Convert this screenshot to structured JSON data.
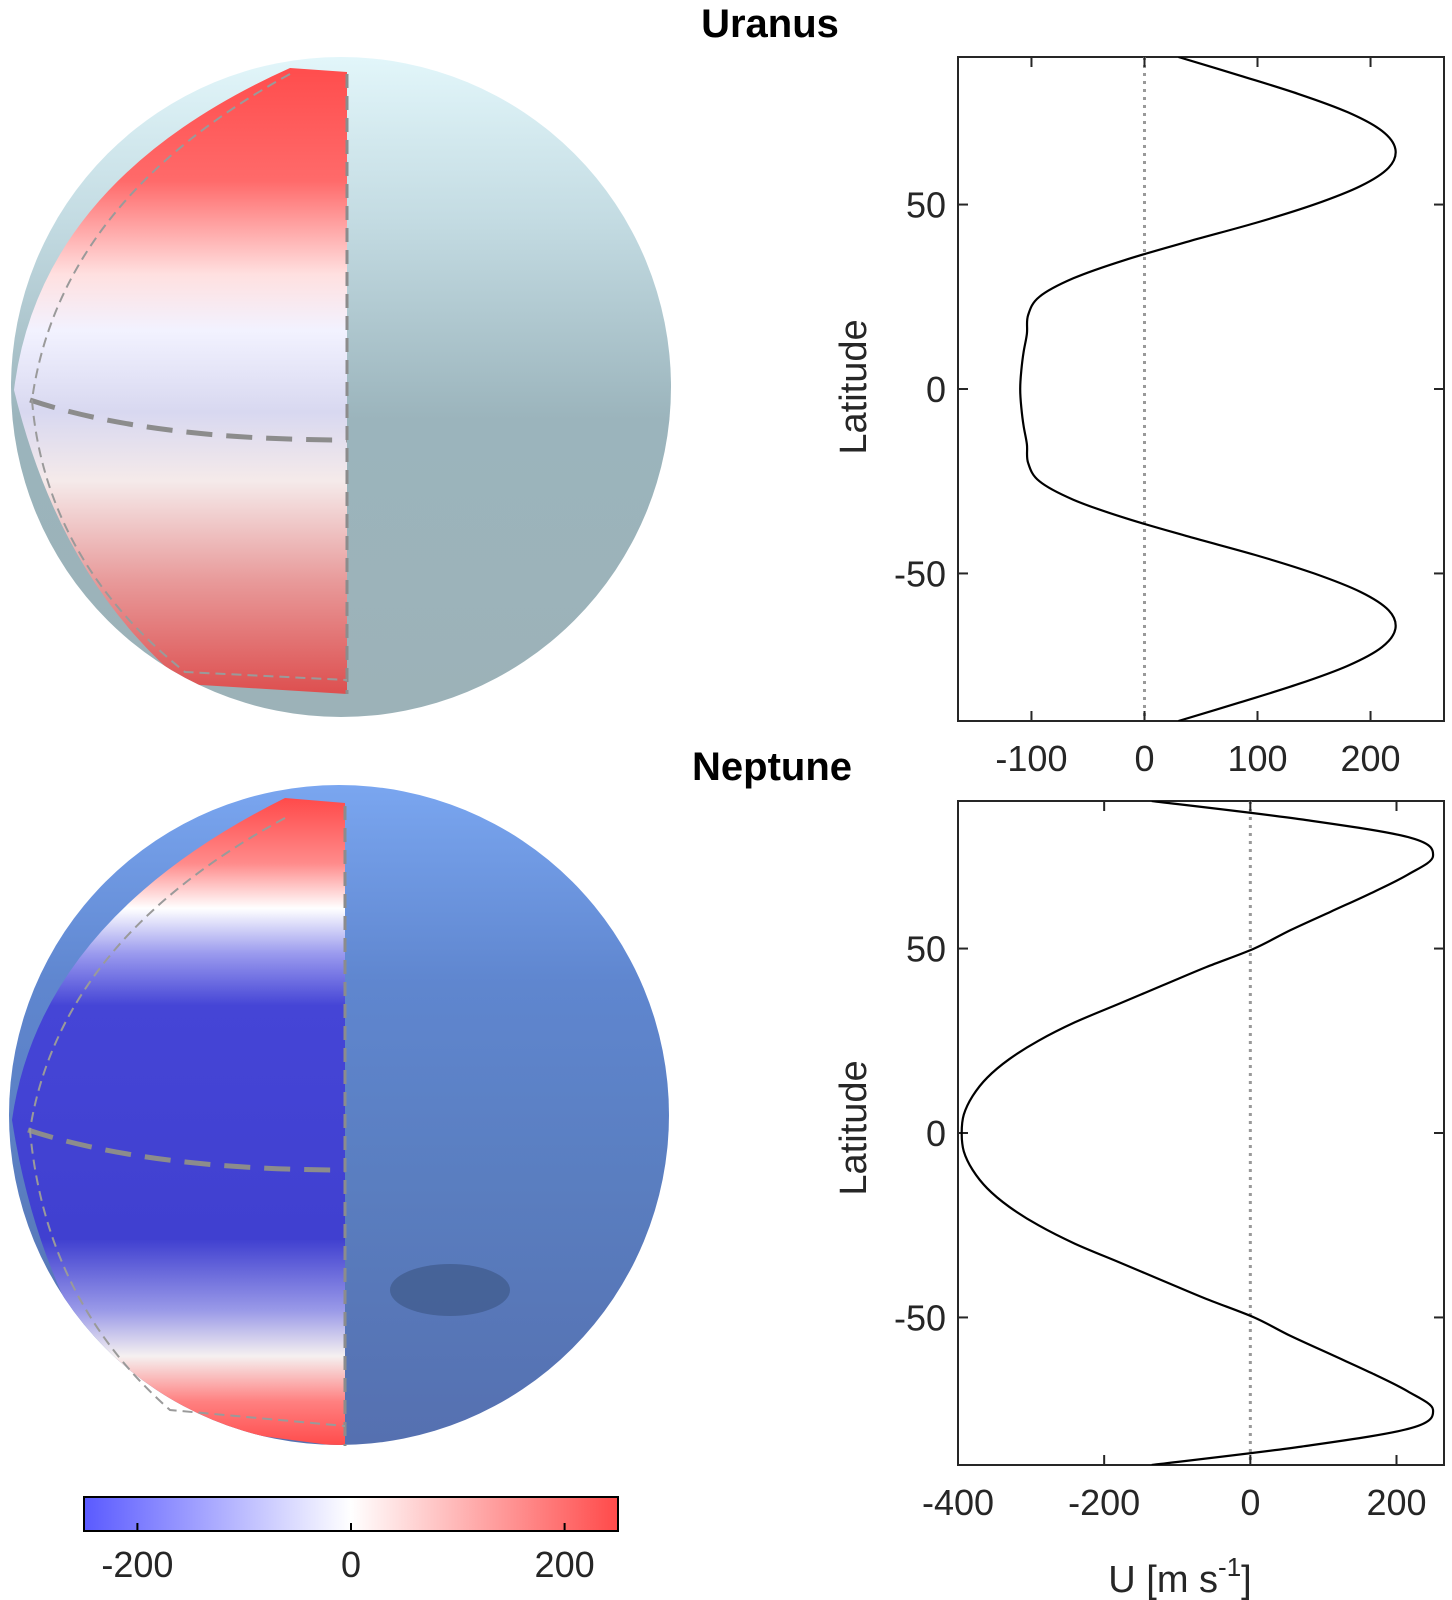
{
  "chart_data": [
    {
      "type": "line",
      "title": "Uranus",
      "xlabel": "",
      "ylabel": "Latitude",
      "xlim": [
        -165,
        265
      ],
      "ylim": [
        -90,
        90
      ],
      "xticks": [
        -100,
        0,
        100,
        200
      ],
      "yticks": [
        -50,
        0,
        50
      ],
      "x_tick_labels": [
        "-100",
        "0",
        "100",
        "200"
      ],
      "y_tick_labels": [
        "-50",
        "0",
        "50"
      ],
      "zero_reference_line": "dotted",
      "series": [
        {
          "latitude": [
            -90,
            -85,
            -80,
            -75,
            -70,
            -65,
            -60,
            -55,
            -50,
            -45,
            -40,
            -35,
            -30,
            -25,
            -20,
            -15,
            -10,
            -5,
            0,
            5,
            10,
            15,
            20,
            25,
            30,
            35,
            40,
            45,
            50,
            55,
            60,
            65,
            70,
            75,
            80,
            85,
            90
          ],
          "u": [
            30,
            84,
            136,
            180,
            210,
            222,
            216,
            191,
            150,
            98,
            39,
            -17,
            -63,
            -93,
            -103,
            -104,
            -107,
            -109,
            -110,
            -109,
            -107,
            -104,
            -103,
            -93,
            -63,
            -17,
            39,
            98,
            150,
            191,
            216,
            222,
            210,
            180,
            136,
            84,
            30
          ]
        }
      ]
    },
    {
      "type": "line",
      "title": "Neptune",
      "xlabel": "U [m s",
      "xlabel_sup": "-1",
      "xlabel_end": "]",
      "ylabel": "Latitude",
      "xlim": [
        -400,
        265
      ],
      "ylim": [
        -90,
        90
      ],
      "xticks": [
        -400,
        -200,
        0,
        200
      ],
      "yticks": [
        -50,
        0,
        50
      ],
      "x_tick_labels": [
        "-400",
        "-200",
        "0",
        "200"
      ],
      "y_tick_labels": [
        "-50",
        "0",
        "50"
      ],
      "zero_reference_line": "dotted",
      "series": [
        {
          "latitude": [
            -90,
            -85,
            -80,
            -75,
            -70,
            -65,
            -60,
            -55,
            -50,
            -45,
            -40,
            -35,
            -30,
            -25,
            -20,
            -15,
            -10,
            -5,
            0,
            5,
            10,
            15,
            20,
            25,
            30,
            35,
            40,
            45,
            50,
            55,
            60,
            65,
            70,
            75,
            80,
            85,
            90
          ],
          "u": [
            -135,
            70,
            220,
            250,
            215,
            165,
            110,
            55,
            5,
            -60,
            -120,
            -180,
            -240,
            -290,
            -330,
            -360,
            -380,
            -392,
            -395,
            -392,
            -380,
            -360,
            -330,
            -290,
            -240,
            -180,
            -120,
            -60,
            5,
            55,
            110,
            165,
            215,
            250,
            220,
            70,
            -135
          ]
        }
      ]
    }
  ],
  "colorbar": {
    "min": -250,
    "max": 250,
    "tick_values": [
      -200,
      0,
      200
    ],
    "tick_labels": [
      "-200",
      "0",
      "200"
    ],
    "colors": [
      "#5a5aff",
      "#ffffff",
      "#ff4a4a"
    ]
  },
  "colors": {
    "uranus_surface": "#97b0b8",
    "neptune_surface": "#5b7ec2",
    "curve": "#000000",
    "zero_line": "#999999",
    "dashed_overlay": "#8c8c8c"
  }
}
